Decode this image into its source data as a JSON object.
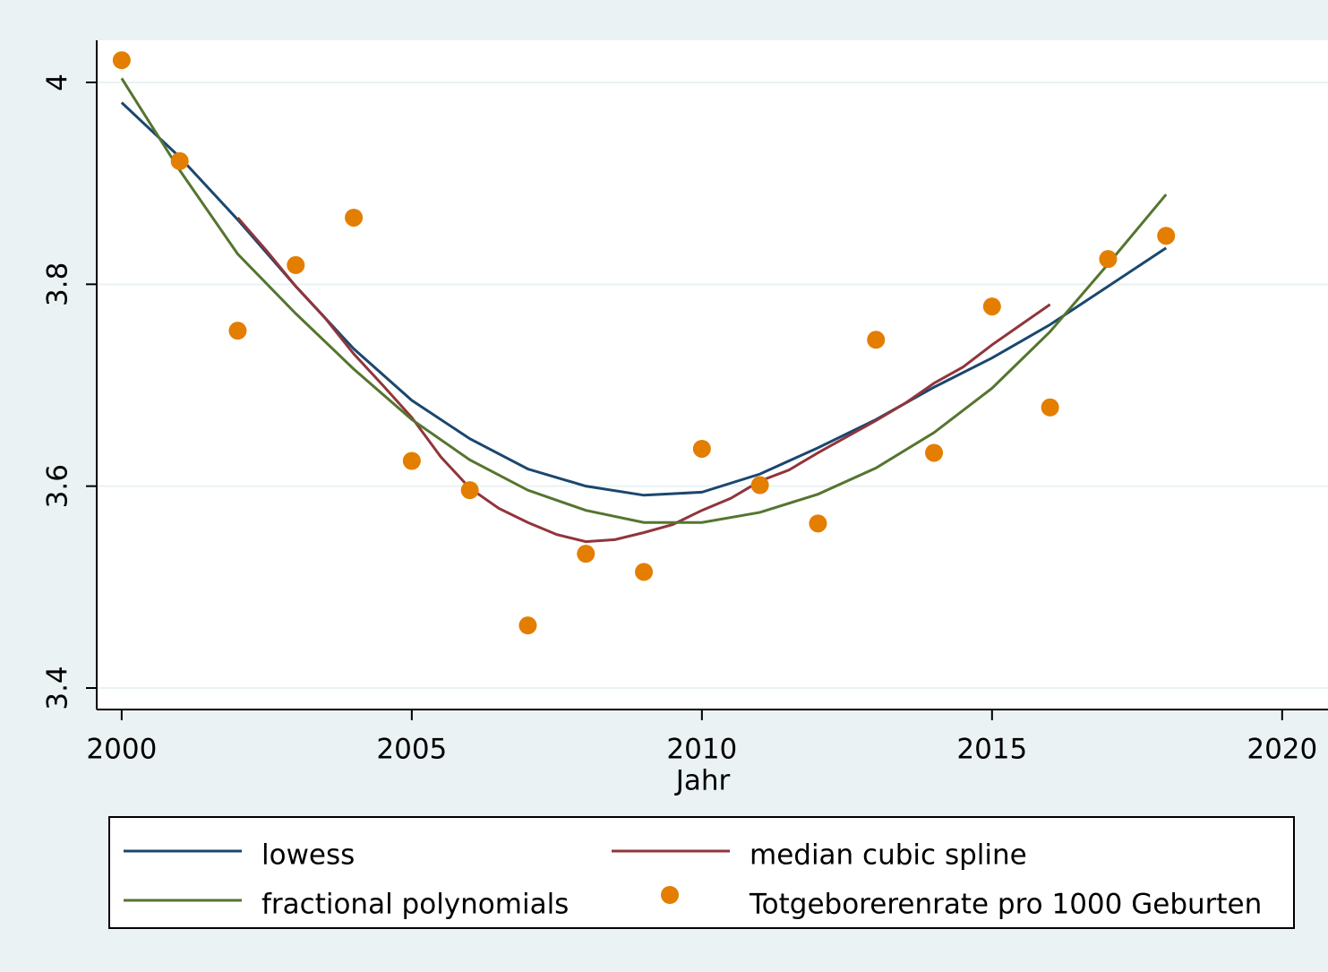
{
  "chart_data": {
    "type": "line",
    "x_label": "Jahr",
    "xlim": [
      1999.57,
      2020.79
    ],
    "xticks": [
      2000,
      2005,
      2010,
      2015,
      2020
    ],
    "ylim": [
      3.3787,
      4.0417
    ],
    "yticks": [
      3.4,
      3.6,
      3.8,
      4
    ],
    "grid": true,
    "series": [
      {
        "name": "lowess",
        "color": "#1a476f",
        "kind": "line",
        "x": [
          2000,
          2001,
          2002,
          2003,
          2004,
          2005,
          2006,
          2007,
          2008,
          2009,
          2010,
          2011,
          2012,
          2013,
          2014,
          2015,
          2016,
          2017,
          2018
        ],
        "values": [
          3.98,
          3.926,
          3.864,
          3.798,
          3.736,
          3.685,
          3.647,
          3.617,
          3.6,
          3.591,
          3.594,
          3.612,
          3.638,
          3.666,
          3.698,
          3.727,
          3.76,
          3.798,
          3.836
        ]
      },
      {
        "name": "median cubic spline",
        "color": "#90353b",
        "kind": "line",
        "x": [
          2002,
          2002.5,
          2003,
          2003.5,
          2004,
          2004.5,
          2005,
          2005.5,
          2006,
          2006.5,
          2007,
          2007.5,
          2008,
          2008.5,
          2009,
          2009.5,
          2010,
          2010.5,
          2011,
          2011.5,
          2012,
          2012.5,
          2013,
          2013.5,
          2014,
          2014.5,
          2015,
          2015.5,
          2016
        ],
        "values": [
          3.866,
          3.833,
          3.798,
          3.767,
          3.731,
          3.7,
          3.668,
          3.629,
          3.598,
          3.578,
          3.564,
          3.552,
          3.545,
          3.547,
          3.554,
          3.562,
          3.576,
          3.588,
          3.605,
          3.616,
          3.633,
          3.649,
          3.665,
          3.682,
          3.702,
          3.718,
          3.74,
          3.76,
          3.78
        ]
      },
      {
        "name": "fractional polynomials",
        "color": "#55752f",
        "kind": "line",
        "x": [
          2000,
          2001,
          2002,
          2003,
          2004,
          2005,
          2006,
          2007,
          2008,
          2009,
          2010,
          2011,
          2012,
          2013,
          2014,
          2015,
          2016,
          2017,
          2018
        ],
        "values": [
          4.004,
          3.913,
          3.83,
          3.771,
          3.716,
          3.666,
          3.626,
          3.596,
          3.576,
          3.564,
          3.564,
          3.574,
          3.592,
          3.618,
          3.653,
          3.697,
          3.753,
          3.82,
          3.889
        ]
      },
      {
        "name": "Totgeborerenrate pro 1000 Geburten",
        "color": "#e37e00",
        "kind": "scatter",
        "x": [
          2000,
          2001,
          2002,
          2003,
          2004,
          2005,
          2006,
          2007,
          2008,
          2009,
          2010,
          2011,
          2012,
          2013,
          2014,
          2015,
          2016,
          2017,
          2018
        ],
        "values": [
          4.022,
          3.922,
          3.754,
          3.819,
          3.866,
          3.625,
          3.596,
          3.462,
          3.533,
          3.515,
          3.637,
          3.601,
          3.563,
          3.745,
          3.633,
          3.778,
          3.678,
          3.825,
          3.848
        ]
      }
    ]
  }
}
